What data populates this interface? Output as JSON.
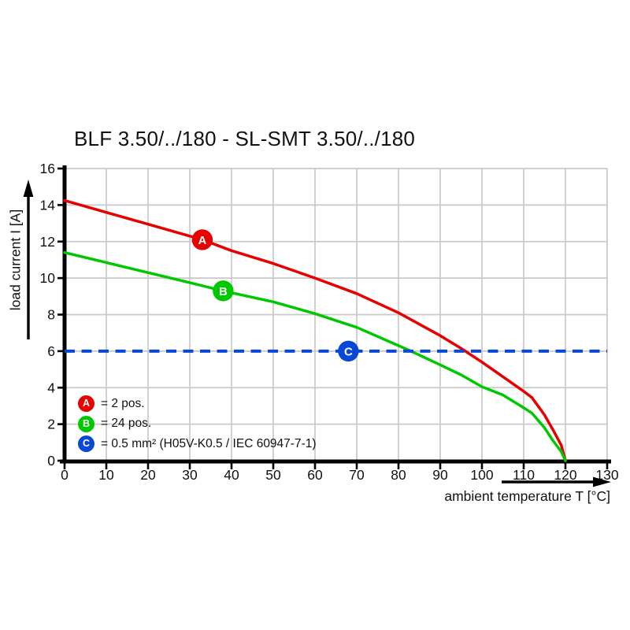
{
  "colors": {
    "background": "#ffffff",
    "grid": "#c9c9c9",
    "axis": "#000000",
    "text": "#111111"
  },
  "chart_data": {
    "type": "line",
    "title": "BLF 3.50/../180 - SL-SMT 3.50/../180",
    "xlabel": "ambient temperature T [°C]",
    "ylabel": "load current I [A]",
    "xlim": [
      0,
      130
    ],
    "ylim": [
      0,
      16
    ],
    "xticks": [
      0,
      10,
      20,
      30,
      40,
      50,
      60,
      70,
      80,
      90,
      100,
      110,
      120,
      130
    ],
    "yticks": [
      0,
      2,
      4,
      6,
      8,
      10,
      12,
      14,
      16
    ],
    "grid": true,
    "legend_position": "bottom-left-inside",
    "series": [
      {
        "id": "A",
        "legend_text": "= 2 pos.",
        "color": "#e60000",
        "style": "solid",
        "marker": {
          "x": 33,
          "y": 12.1
        },
        "points": [
          [
            0,
            14.25
          ],
          [
            10,
            13.6
          ],
          [
            20,
            12.95
          ],
          [
            30,
            12.3
          ],
          [
            33,
            12.1
          ],
          [
            40,
            11.5
          ],
          [
            50,
            10.8
          ],
          [
            60,
            10.0
          ],
          [
            70,
            9.15
          ],
          [
            80,
            8.1
          ],
          [
            90,
            6.85
          ],
          [
            95,
            6.15
          ],
          [
            100,
            5.4
          ],
          [
            105,
            4.6
          ],
          [
            110,
            3.8
          ],
          [
            112,
            3.45
          ],
          [
            115,
            2.5
          ],
          [
            117,
            1.7
          ],
          [
            119,
            0.85
          ],
          [
            120,
            0
          ]
        ]
      },
      {
        "id": "B",
        "legend_text": "= 24 pos.",
        "color": "#00c800",
        "style": "solid",
        "marker": {
          "x": 38,
          "y": 9.3
        },
        "points": [
          [
            0,
            11.4
          ],
          [
            10,
            10.85
          ],
          [
            20,
            10.3
          ],
          [
            30,
            9.75
          ],
          [
            38,
            9.3
          ],
          [
            50,
            8.7
          ],
          [
            60,
            8.05
          ],
          [
            70,
            7.3
          ],
          [
            80,
            6.3
          ],
          [
            83,
            6.0
          ],
          [
            90,
            5.25
          ],
          [
            95,
            4.7
          ],
          [
            100,
            4.05
          ],
          [
            105,
            3.6
          ],
          [
            110,
            2.9
          ],
          [
            112,
            2.6
          ],
          [
            115,
            1.8
          ],
          [
            117,
            1.1
          ],
          [
            119,
            0.5
          ],
          [
            120,
            0
          ]
        ]
      },
      {
        "id": "C",
        "legend_text": "= 0.5 mm² (H05V-K0.5 / IEC 60947-7-1)",
        "color": "#0947d6",
        "style": "dashed",
        "marker": {
          "x": 68,
          "y": 6
        },
        "points": [
          [
            0,
            6
          ],
          [
            130,
            6
          ]
        ]
      }
    ]
  }
}
